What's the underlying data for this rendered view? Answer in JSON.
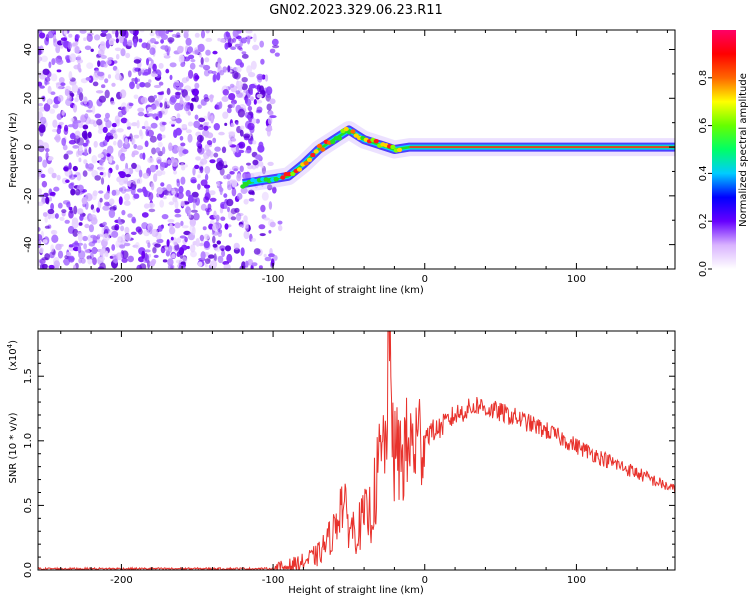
{
  "title": "GN02.2023.329.06.23.R11",
  "colorbar": {
    "label": "Normalized spectral amplitude",
    "ticks": [
      "0.0",
      "0.2",
      "0.4",
      "0.6",
      "0.8"
    ],
    "tick_values": [
      0.0,
      0.2,
      0.4,
      0.6,
      0.8
    ],
    "range": [
      0,
      1
    ],
    "colormap": [
      "#ffffff",
      "#d9b3ff",
      "#6600ff",
      "#0000ff",
      "#00ccff",
      "#00ff66",
      "#66ff00",
      "#ffff00",
      "#ff6600",
      "#ff0000",
      "#ff0066"
    ]
  },
  "chart_data": [
    {
      "type": "heatmap",
      "xlabel": "Height of straight line (km)",
      "ylabel": "Frequency (Hz)",
      "xlim": [
        -255,
        165
      ],
      "ylim": [
        -50,
        48
      ],
      "x_ticks": [
        -200,
        -100,
        0,
        100
      ],
      "x_tick_labels": [
        "-200",
        "-100",
        "0",
        "100"
      ],
      "y_ticks": [
        -40,
        -20,
        0,
        20,
        40
      ],
      "y_tick_labels": [
        "-40",
        "-20",
        "0",
        "20",
        "40"
      ],
      "noise_region_x": [
        -255,
        -105
      ],
      "ridge": {
        "x": [
          -120,
          -110,
          -100,
          -90,
          -80,
          -70,
          -60,
          -50,
          -45,
          -40,
          -30,
          -20,
          -10,
          0,
          50,
          100,
          165
        ],
        "y": [
          -15,
          -14,
          -13,
          -12,
          -7,
          -1,
          3,
          7,
          5,
          3,
          1,
          -1,
          0,
          0,
          0,
          0,
          0
        ]
      }
    },
    {
      "type": "line",
      "xlabel": "Height of straight line (km)",
      "ylabel": "SNR (10 * v/v)",
      "y_scale_label": "(x10",
      "y_scale_exp": "4",
      "xlim": [
        -255,
        165
      ],
      "ylim": [
        0,
        1.85
      ],
      "x_ticks": [
        -200,
        -100,
        0,
        100
      ],
      "x_tick_labels": [
        "-200",
        "-100",
        "0",
        "100"
      ],
      "y_ticks": [
        0.0,
        0.5,
        1.0,
        1.5
      ],
      "y_tick_labels": [
        "0.0",
        "0.5",
        "1.0",
        "1.5"
      ],
      "line_color": "#e8322c",
      "series": [
        {
          "x": [
            -255,
            -200,
            -150,
            -110,
            -100,
            -90,
            -80,
            -70,
            -60,
            -55,
            -50,
            -45,
            -40,
            -35,
            -30,
            -25,
            -24,
            -20,
            -15,
            -10,
            -5,
            0,
            10,
            20,
            30,
            35,
            40,
            50,
            60,
            80,
            100,
            120,
            140,
            165
          ],
          "values": [
            0.01,
            0.01,
            0.01,
            0.01,
            0.01,
            0.03,
            0.06,
            0.12,
            0.3,
            0.55,
            0.35,
            0.3,
            0.4,
            0.45,
            0.8,
            1.05,
            1.9,
            0.85,
            0.9,
            0.95,
            1.0,
            1.05,
            1.1,
            1.2,
            1.25,
            1.28,
            1.25,
            1.22,
            1.18,
            1.08,
            0.96,
            0.85,
            0.75,
            0.62
          ]
        }
      ]
    }
  ]
}
